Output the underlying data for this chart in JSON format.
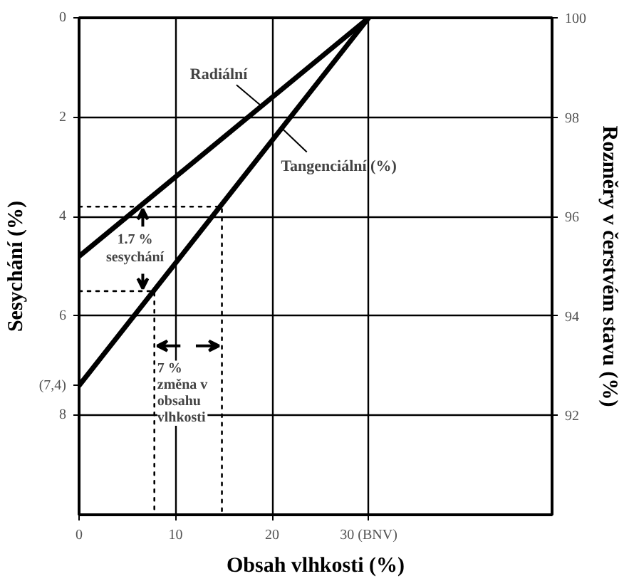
{
  "chart_data": {
    "type": "line",
    "xlabel": "Obsah vlhkosti (%)",
    "ylabel": "Sesychání (%)",
    "y2label": "Rozměry v čerstvém stavu (%)",
    "xlim": [
      0,
      49
    ],
    "xticks": [
      0,
      10,
      20,
      {
        "value": 30,
        "label": "30 (BNV)"
      }
    ],
    "ylim": [
      10,
      0
    ],
    "yticks": [
      0,
      2,
      4,
      6,
      {
        "value": 7.4,
        "label": "(7,4)"
      },
      8
    ],
    "y2lim": [
      90,
      100
    ],
    "y2ticks": [
      92,
      94,
      96,
      98,
      100
    ],
    "grid": true,
    "marker": "none",
    "series": [
      {
        "name": "Radiální",
        "color": "#000000",
        "x": [
          0,
          30
        ],
        "values": [
          4.8,
          0
        ]
      },
      {
        "name": "Tangenciální (%)",
        "color": "#000000",
        "x": [
          0,
          30
        ],
        "values": [
          7.4,
          0
        ]
      },
      {
        "color": "#000000",
        "x": [
          0,
          14.8,
          14.8
        ],
        "values": [
          3.8,
          3.8,
          10
        ],
        "line_style": "dotted"
      },
      {
        "color": "#000000",
        "x": [
          0,
          7.8,
          7.8
        ],
        "values": [
          5.5,
          5.5,
          10
        ],
        "line_style": "dotted"
      }
    ],
    "annotations": [
      "1.7 %\nsesychání",
      "7 %\nzměna v\nobsahu\nvlhkosti"
    ]
  }
}
